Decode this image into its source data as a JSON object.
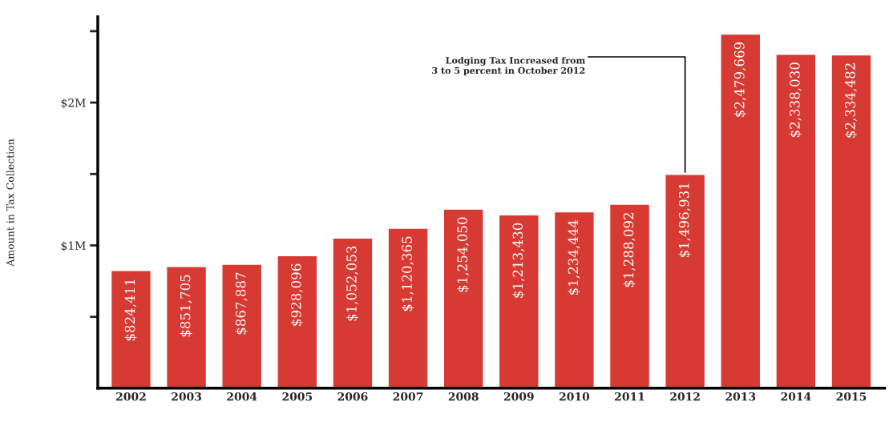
{
  "chart_data": {
    "type": "bar",
    "categories": [
      "2002",
      "2003",
      "2004",
      "2005",
      "2006",
      "2007",
      "2008",
      "2009",
      "2010",
      "2011",
      "2012",
      "2013",
      "2014",
      "2015"
    ],
    "values": [
      824411,
      851705,
      867887,
      928096,
      1052053,
      1120365,
      1254050,
      1213430,
      1234444,
      1288092,
      1496931,
      2479669,
      2338030,
      2334482
    ],
    "value_labels": [
      "$824,411",
      "$851,705",
      "$867,887",
      "$928,096",
      "$1,052,053",
      "$1,120,365",
      "$1,254,050",
      "$1,213,430",
      "$1,234,444",
      "$1,288,092",
      "$1,496,931",
      "$2,479,669",
      "$2,338,030",
      "$2,334,482"
    ],
    "color": "#d63a32",
    "ylabel": "Amount in Tax Collection",
    "ylim": [
      0,
      2600000
    ],
    "yticks": [
      {
        "value": 500000,
        "label": null
      },
      {
        "value": 1000000,
        "label": "$1M"
      },
      {
        "value": 1500000,
        "label": null
      },
      {
        "value": 2000000,
        "label": "$2M"
      },
      {
        "value": 2500000,
        "label": null
      }
    ],
    "annotations": [
      {
        "text": "Lodging Tax Increased from\n3 to 5 percent in October 2012",
        "x": "2012",
        "y": 1496931
      }
    ],
    "grid": false,
    "legend": false
  }
}
